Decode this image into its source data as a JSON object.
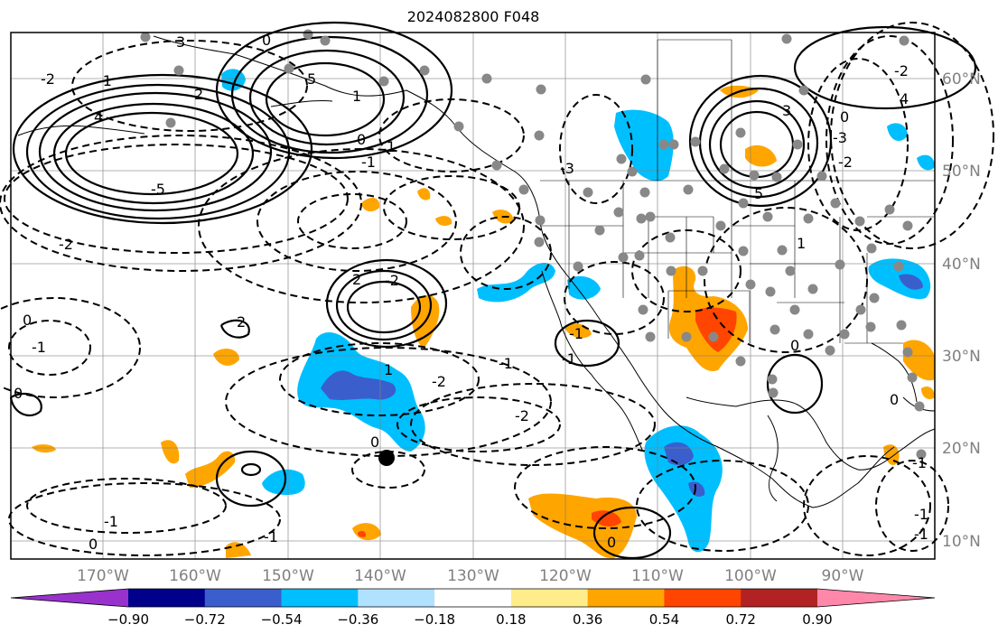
{
  "title": "2024082800 F048",
  "longitude_labels": [
    "170°W",
    "160°W",
    "150°W",
    "140°W",
    "130°W",
    "120°W",
    "110°W",
    "100°W",
    "90°W"
  ],
  "latitude_labels": [
    "60°N",
    "50°N",
    "40°N",
    "30°N",
    "20°N",
    "10°N"
  ],
  "colorbar": {
    "colors": [
      "#9932cc",
      "#00008b",
      "#3a5fcd",
      "#00bfff",
      "#b0e2ff",
      "#ffffff",
      "#ffec8b",
      "#ffa500",
      "#ff4500",
      "#b22222",
      "#ff88aa"
    ],
    "tick_labels": [
      "−0.90",
      "−0.72",
      "−0.54",
      "−0.36",
      "−0.18",
      "0.18",
      "0.36",
      "0.54",
      "0.72",
      "0.90"
    ]
  },
  "contour_labels": [
    "-2",
    "-1",
    "4",
    "-5",
    "3",
    "2",
    "0",
    "5",
    "1",
    "-1",
    "-2",
    "0",
    "1",
    "-3",
    "3",
    "5",
    "0",
    "4",
    "-2",
    "2",
    "1",
    "-1",
    "-2",
    "-2",
    "-2",
    "-1",
    "-1",
    "0",
    "0",
    "-1",
    "2",
    "-1",
    "-1",
    "0",
    "-3",
    "0",
    "0",
    "-2",
    "-1",
    "1",
    "0",
    "0",
    "-1",
    "-1"
  ],
  "colors": {
    "grid": "#808080",
    "tick_text": "#808080",
    "marker": "#888888",
    "storm_dot": "#000000"
  }
}
